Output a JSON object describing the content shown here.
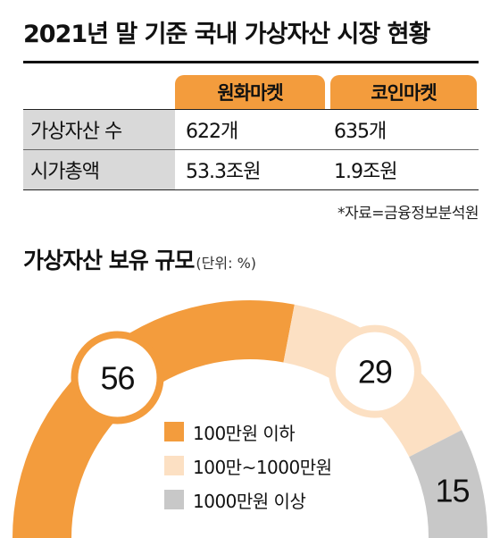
{
  "title": "2021년 말 기준 국내 가상자산 시장 현황",
  "table": {
    "columns": [
      "원화마켓",
      "코인마켓"
    ],
    "rows": [
      {
        "label": "가상자산 수",
        "values": [
          "622개",
          "635개"
        ]
      },
      {
        "label": "시가총액",
        "values": [
          "53.3조원",
          "1.9조원"
        ]
      }
    ],
    "source": "*자료=금융정보분석원"
  },
  "chart_title": "가상자산 보유 규모",
  "chart_unit": "(단위: %)",
  "colors": {
    "accent": "#f39c3d",
    "light": "#fce0c3",
    "gray": "#c8c8c8",
    "label_gray": "#d9d9d9"
  },
  "chart_data": {
    "type": "pie",
    "categories": [
      "100만원 이하",
      "100만~1000만원",
      "1000만원 이상"
    ],
    "values": [
      56,
      29,
      15
    ],
    "colors": [
      "#f39c3d",
      "#fce0c3",
      "#c8c8c8"
    ],
    "legend": "inside-center"
  }
}
